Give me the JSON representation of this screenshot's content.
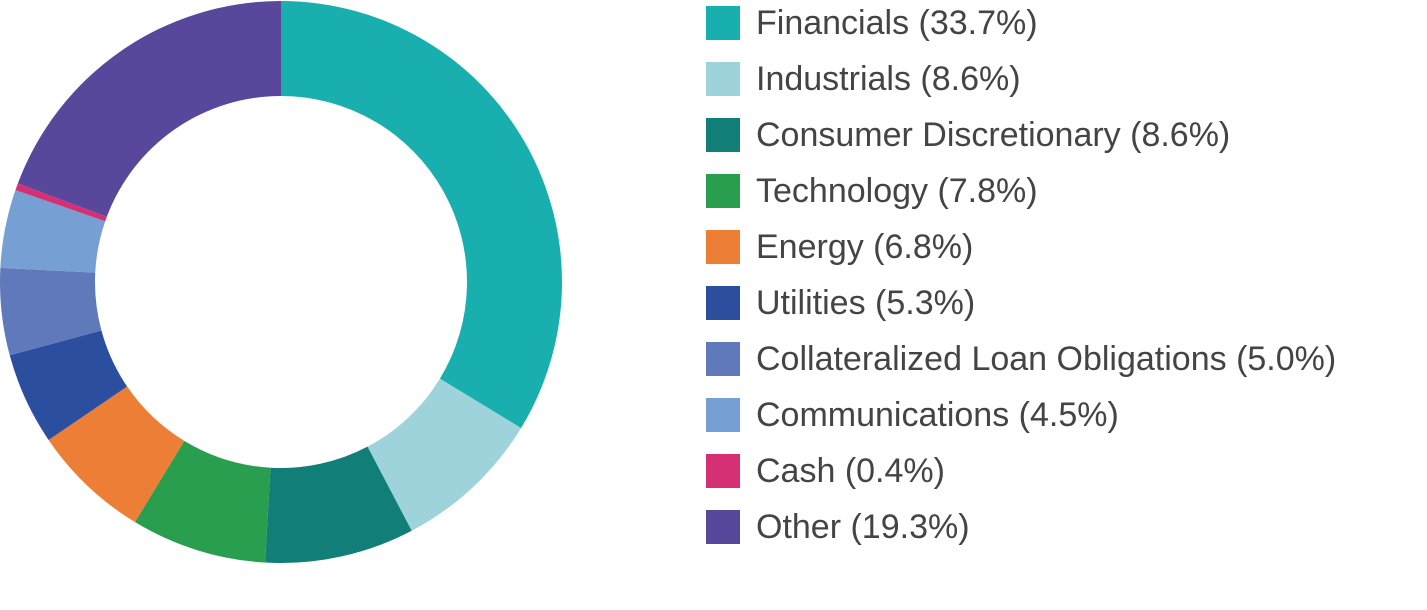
{
  "chart_data": {
    "type": "donut",
    "categories": [
      "Financials (33.7%)",
      "Industrials (8.6%)",
      "Consumer Discretionary (8.6%)",
      "Technology (7.8%)",
      "Energy (6.8%)",
      "Utilities (5.3%)",
      "Collateralized Loan Obligations (5.0%)",
      "Communications (4.5%)",
      "Cash (0.4%)",
      "Other (19.3%)"
    ],
    "values": [
      33.7,
      8.6,
      8.6,
      7.8,
      6.8,
      5.3,
      5.0,
      4.5,
      0.4,
      19.3
    ],
    "colors": [
      "#1aafaf",
      "#9fd3db",
      "#127e78",
      "#2a9e4f",
      "#ec7e35",
      "#2b4f9e",
      "#5f79bb",
      "#769fd3",
      "#d63074",
      "#58479a"
    ],
    "legend": "right"
  }
}
